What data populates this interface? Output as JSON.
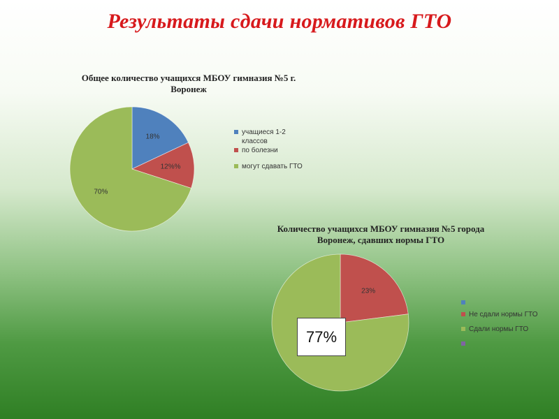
{
  "page": {
    "title": "Результаты сдачи нормативов ГТО",
    "callout_text": "77%"
  },
  "colors": {
    "blue": "#4f81bd",
    "red": "#c0504d",
    "green": "#9bbb59",
    "purple": "#8064a2",
    "title_red": "#d7191c"
  },
  "chart_data": [
    {
      "type": "pie",
      "title": "Общее количество учащихся МБОУ гимназия №5 г. Воронеж",
      "title_lines": [
        "Общее количество учащихся МБОУ гимназия №5 г.",
        "Воронеж"
      ],
      "categories": [
        "учащиеся 1-2 классов",
        "по болезни",
        "могут сдавать ГТО"
      ],
      "values": [
        18,
        12,
        70
      ],
      "data_labels": [
        "18%",
        "12%%",
        "70%"
      ],
      "colors": [
        "#4f81bd",
        "#c0504d",
        "#9bbb59"
      ],
      "legend": "right"
    },
    {
      "type": "pie",
      "title": "Количество учащихся МБОУ гимназия №5 города Воронеж, сдавших нормы ГТО",
      "title_lines": [
        "Количество учащихся МБОУ гимназия №5 города",
        "Воронеж, сдавших нормы ГТО"
      ],
      "categories": [
        "",
        "Не сдали нормы ГТО",
        "Сдали нормы ГТО",
        ""
      ],
      "values": [
        0,
        23,
        77,
        0
      ],
      "data_labels": [
        "",
        "23%",
        "",
        ""
      ],
      "colors": [
        "#4f81bd",
        "#c0504d",
        "#9bbb59",
        "#8064a2"
      ],
      "legend": "right"
    }
  ]
}
